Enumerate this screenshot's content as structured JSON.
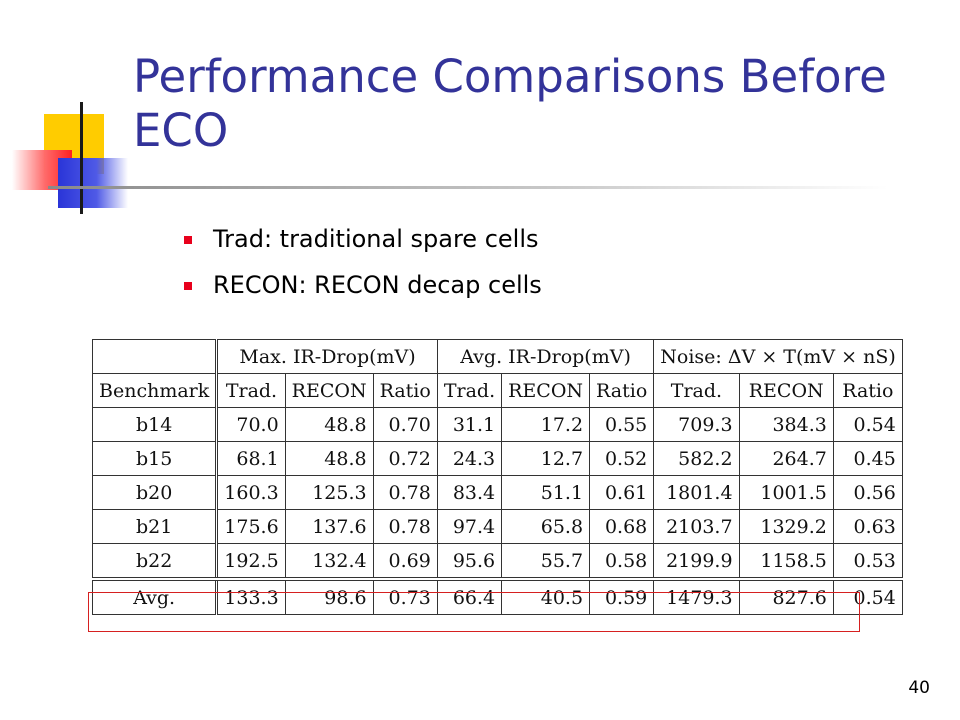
{
  "slide": {
    "title": "Performance Comparisons Before ECO",
    "bullets": [
      "Trad: traditional spare cells",
      "RECON: RECON decap cells"
    ],
    "page_number": "40",
    "colors": {
      "title": "#333399",
      "bullet": "#e8001c",
      "highlight": "#d62020"
    },
    "logo_icon": "color-squares-logo-icon"
  },
  "table": {
    "benchmark_header": "Benchmark",
    "groups": [
      "Max. IR-Drop(mV)",
      "Avg. IR-Drop(mV)",
      "Noise: ΔV × T(mV × nS)"
    ],
    "subheaders": [
      "Trad.",
      "RECON",
      "Ratio"
    ],
    "rows": [
      {
        "name": "b14",
        "values": [
          "70.0",
          "48.8",
          "0.70",
          "31.1",
          "17.2",
          "0.55",
          "709.3",
          "384.3",
          "0.54"
        ]
      },
      {
        "name": "b15",
        "values": [
          "68.1",
          "48.8",
          "0.72",
          "24.3",
          "12.7",
          "0.52",
          "582.2",
          "264.7",
          "0.45"
        ]
      },
      {
        "name": "b20",
        "values": [
          "160.3",
          "125.3",
          "0.78",
          "83.4",
          "51.1",
          "0.61",
          "1801.4",
          "1001.5",
          "0.56"
        ]
      },
      {
        "name": "b21",
        "values": [
          "175.6",
          "137.6",
          "0.78",
          "97.4",
          "65.8",
          "0.68",
          "2103.7",
          "1329.2",
          "0.63"
        ]
      },
      {
        "name": "b22",
        "values": [
          "192.5",
          "132.4",
          "0.69",
          "95.6",
          "55.7",
          "0.58",
          "2199.9",
          "1158.5",
          "0.53"
        ]
      }
    ],
    "average": {
      "name": "Avg.",
      "values": [
        "133.3",
        "98.6",
        "0.73",
        "66.4",
        "40.5",
        "0.59",
        "1479.3",
        "827.6",
        "0.54"
      ]
    }
  }
}
